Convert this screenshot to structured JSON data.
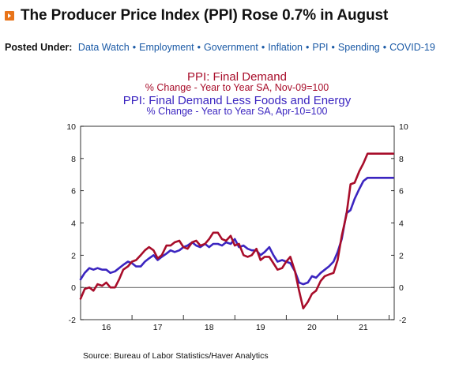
{
  "header": {
    "icon": "orange-arrow-icon",
    "title": "The Producer Price Index (PPI) Rose 0.7% in August"
  },
  "posted_under": {
    "label": "Posted Under:",
    "tags": [
      "Data Watch",
      "Employment",
      "Government",
      "Inflation",
      "PPI",
      "Spending",
      "COVID-19"
    ],
    "separator": "•"
  },
  "chart_data": {
    "type": "line",
    "titles": [
      {
        "text": "PPI: Final Demand",
        "color": "#a80d2a"
      },
      {
        "text": "% Change - Year to Year     SA, Nov-09=100",
        "color": "#a80d2a"
      },
      {
        "text": "PPI: Final Demand Less Foods and Energy",
        "color": "#3b25c0"
      },
      {
        "text": "% Change - Year to Year     SA, Apr-10=100",
        "color": "#3b25c0"
      }
    ],
    "ylim": [
      -2,
      10
    ],
    "yticks": [
      -2,
      0,
      2,
      4,
      6,
      8,
      10
    ],
    "xlim": [
      2015.5,
      2021.6
    ],
    "xticks": [
      {
        "label": "16",
        "at": 2016.0
      },
      {
        "label": "17",
        "at": 2017.0
      },
      {
        "label": "18",
        "at": 2018.0
      },
      {
        "label": "19",
        "at": 2019.0
      },
      {
        "label": "20",
        "at": 2020.0
      },
      {
        "label": "21",
        "at": 2021.0
      }
    ],
    "source": "Source:  Bureau of Labor Statistics/Haver Analytics",
    "series": [
      {
        "name": "PPI: Final Demand",
        "color": "#a80d2a",
        "x": [
          2015.5,
          2015.58,
          2015.67,
          2015.75,
          2015.83,
          2015.92,
          2016.0,
          2016.08,
          2016.17,
          2016.25,
          2016.33,
          2016.42,
          2016.5,
          2016.58,
          2016.67,
          2016.75,
          2016.83,
          2016.92,
          2017.0,
          2017.08,
          2017.17,
          2017.25,
          2017.33,
          2017.42,
          2017.5,
          2017.58,
          2017.67,
          2017.75,
          2017.83,
          2017.92,
          2018.0,
          2018.08,
          2018.17,
          2018.25,
          2018.33,
          2018.42,
          2018.5,
          2018.58,
          2018.67,
          2018.75,
          2018.83,
          2018.92,
          2019.0,
          2019.08,
          2019.17,
          2019.25,
          2019.33,
          2019.42,
          2019.5,
          2019.58,
          2019.67,
          2019.75,
          2019.83,
          2019.92,
          2020.0,
          2020.08,
          2020.17,
          2020.25,
          2020.33,
          2020.42,
          2020.5,
          2020.58,
          2020.67,
          2020.75,
          2020.83,
          2020.92,
          2021.0,
          2021.08,
          2021.17,
          2021.25,
          2021.33,
          2021.42,
          2021.5,
          2021.58
        ],
        "values": [
          -0.7,
          -0.1,
          0.0,
          -0.2,
          0.2,
          0.1,
          0.3,
          0.0,
          0.0,
          0.5,
          1.1,
          1.3,
          1.6,
          1.7,
          2.0,
          2.3,
          2.5,
          2.3,
          1.8,
          2.0,
          2.6,
          2.6,
          2.8,
          2.9,
          2.5,
          2.4,
          2.8,
          2.9,
          2.6,
          2.7,
          3.0,
          3.4,
          3.4,
          3.0,
          2.9,
          3.2,
          2.6,
          2.7,
          2.0,
          1.9,
          2.0,
          2.4,
          1.7,
          1.9,
          1.9,
          1.5,
          1.1,
          1.2,
          1.6,
          1.9,
          1.0,
          -0.2,
          -1.3,
          -0.9,
          -0.4,
          -0.2,
          0.4,
          0.7,
          0.8,
          0.9,
          1.7,
          3.2,
          4.5,
          6.4,
          6.5,
          7.2,
          7.7,
          8.3,
          8.3,
          8.3,
          8.3,
          8.3,
          8.3,
          8.3
        ]
      },
      {
        "name": "PPI: Final Demand Less Foods and Energy",
        "color": "#3b25c0",
        "x": [
          2015.5,
          2015.58,
          2015.67,
          2015.75,
          2015.83,
          2015.92,
          2016.0,
          2016.08,
          2016.17,
          2016.25,
          2016.33,
          2016.42,
          2016.5,
          2016.58,
          2016.67,
          2016.75,
          2016.83,
          2016.92,
          2017.0,
          2017.08,
          2017.17,
          2017.25,
          2017.33,
          2017.42,
          2017.5,
          2017.58,
          2017.67,
          2017.75,
          2017.83,
          2017.92,
          2018.0,
          2018.08,
          2018.17,
          2018.25,
          2018.33,
          2018.42,
          2018.5,
          2018.58,
          2018.67,
          2018.75,
          2018.83,
          2018.92,
          2019.0,
          2019.08,
          2019.17,
          2019.25,
          2019.33,
          2019.42,
          2019.5,
          2019.58,
          2019.67,
          2019.75,
          2019.83,
          2019.92,
          2020.0,
          2020.08,
          2020.17,
          2020.25,
          2020.33,
          2020.42,
          2020.5,
          2020.58,
          2020.67,
          2020.75,
          2020.83,
          2020.92,
          2021.0,
          2021.08,
          2021.17,
          2021.25,
          2021.33,
          2021.42,
          2021.5,
          2021.58
        ],
        "values": [
          0.5,
          0.9,
          1.2,
          1.1,
          1.2,
          1.1,
          1.1,
          0.9,
          1.0,
          1.2,
          1.4,
          1.6,
          1.5,
          1.3,
          1.3,
          1.6,
          1.8,
          2.0,
          1.7,
          1.9,
          2.1,
          2.3,
          2.2,
          2.3,
          2.5,
          2.6,
          2.8,
          2.6,
          2.5,
          2.7,
          2.5,
          2.7,
          2.7,
          2.6,
          2.8,
          2.7,
          3.0,
          2.5,
          2.6,
          2.4,
          2.3,
          2.3,
          2.0,
          2.2,
          2.5,
          2.0,
          1.6,
          1.7,
          1.6,
          1.5,
          1.0,
          0.3,
          0.2,
          0.3,
          0.7,
          0.6,
          0.9,
          1.1,
          1.3,
          1.6,
          2.2,
          3.0,
          4.6,
          4.8,
          5.5,
          6.1,
          6.6,
          6.8,
          6.8,
          6.8,
          6.8,
          6.8,
          6.8,
          6.8
        ]
      }
    ]
  }
}
